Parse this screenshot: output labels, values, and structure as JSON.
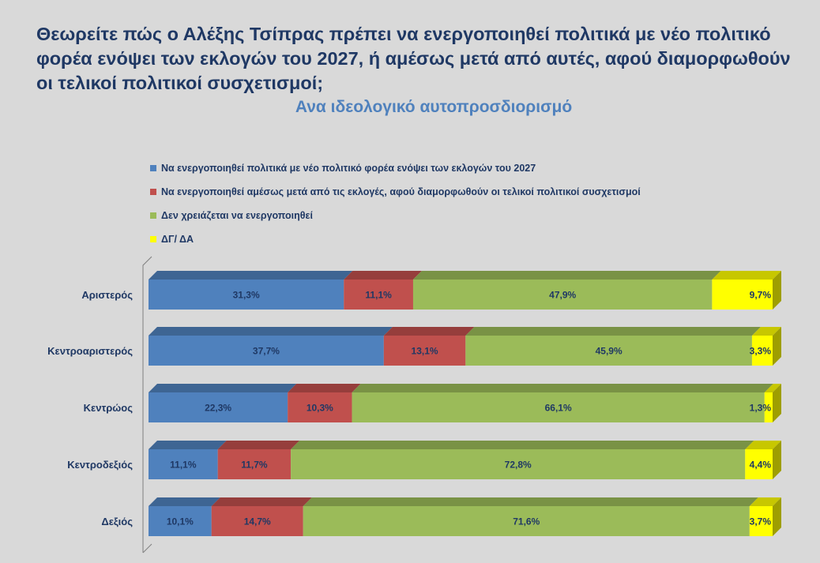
{
  "title": "Θεωρείτε πώς ο Αλέξης Τσίπρας πρέπει να ενεργοποιηθεί πολιτικά με νέο πολιτικό φορέα ενόψει των εκλογών του 2027, ή αμέσως μετά από αυτές, αφού διαμορφωθούν οι τελικοί πολιτικοί συσχετισμοί;",
  "subtitle": "Ανα ιδεολογικό αυτοπροσδιορισμό",
  "colors": {
    "background": "#d9d9d9",
    "title": "#1f3864",
    "subtitle": "#4f81bd",
    "series": [
      "#4f81bd",
      "#c0504d",
      "#9bbb59",
      "#ffff00"
    ]
  },
  "chart_data": {
    "type": "bar",
    "orientation": "horizontal",
    "stacked": "100%",
    "style": "3d",
    "legend_position": "top",
    "grid": false,
    "categories": [
      "Αριστερός",
      "Κεντροαριστερός",
      "Κεντρώος",
      "Κεντροδεξιός",
      "Δεξιός"
    ],
    "series": [
      {
        "name": "Να ενεργοποιηθεί πολιτικά με νέο πολιτικό φορέα ενόψει των εκλογών του 2027",
        "values": [
          31.3,
          37.7,
          22.3,
          11.1,
          10.1
        ],
        "labels": [
          "31,3%",
          "37,7%",
          "22,3%",
          "11,1%",
          "10,1%"
        ]
      },
      {
        "name": "Να ενεργοποιηθεί αμέσως μετά από τις εκλογές, αφού διαμορφωθούν οι τελικοί πολιτικοί συσχετισμοί",
        "values": [
          11.1,
          13.1,
          10.3,
          11.7,
          14.7
        ],
        "labels": [
          "11,1%",
          "13,1%",
          "10,3%",
          "11,7%",
          "14,7%"
        ]
      },
      {
        "name": "Δεν χρειάζεται να ενεργοποιηθεί",
        "values": [
          47.9,
          45.9,
          66.1,
          72.8,
          71.6
        ],
        "labels": [
          "47,9%",
          "45,9%",
          "66,1%",
          "72,8%",
          "71,6%"
        ]
      },
      {
        "name": "ΔΓ/ ΔΑ",
        "values": [
          9.7,
          3.3,
          1.3,
          4.4,
          3.7
        ],
        "labels": [
          "9,7%",
          "3,3%",
          "1,3%",
          "4,4%",
          "3,7%"
        ]
      }
    ]
  }
}
